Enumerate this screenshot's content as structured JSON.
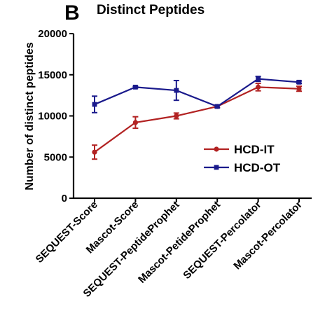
{
  "panel_letter": "B",
  "chart_data": {
    "type": "line",
    "title": "Distinct Peptides",
    "xlabel": "",
    "ylabel": "Number of distinct peptides",
    "categories": [
      "SEQUEST-Score",
      "Mascot-Score",
      "SEQUEST-PeptideProphet",
      "Mascot-PetideProphet",
      "SEQUEST-Percolator",
      "Mascot-Percolator"
    ],
    "ylim": [
      0,
      20000
    ],
    "yticks": [
      0,
      5000,
      10000,
      15000,
      20000
    ],
    "grid": false,
    "legend_position": "center-right",
    "series": [
      {
        "name": "HCD-IT",
        "color": "#b22222",
        "marker": "circle",
        "values": [
          5600,
          9200,
          10000,
          11150,
          13500,
          13300
        ],
        "errors": [
          850,
          700,
          350,
          150,
          450,
          300
        ]
      },
      {
        "name": "HCD-OT",
        "color": "#1a1a8c",
        "marker": "square",
        "values": [
          11400,
          13500,
          13100,
          11150,
          14500,
          14100
        ],
        "errors": [
          1000,
          100,
          1200,
          150,
          300,
          150
        ]
      }
    ]
  }
}
